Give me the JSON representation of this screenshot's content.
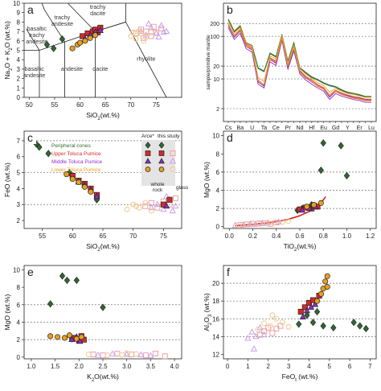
{
  "colors": {
    "peripheral": "#2e6b2e",
    "upper": "#d42a2a",
    "middle": "#8e2fc4",
    "lower": "#e8a020",
    "glass_upper": "#f0a0a0",
    "glass_middle": "#c8a0e8",
    "glass_lower": "#f2c890",
    "ref_line": "#777777",
    "fit_curve": "#d41e1e"
  },
  "legend": {
    "header_arce": "Arce*",
    "header_this": "this study",
    "entries": [
      "Peripheral cones",
      "Upper Toluca Pumice",
      "Middle Toluca Pumice",
      "Lower Toluca Pumice"
    ],
    "footer_whole": "whole rock",
    "footer_glass": "glass"
  },
  "chart_data": [
    {
      "panel": "a",
      "type": "scatter",
      "xlabel": "SiO2(wt.%)",
      "ylabel": "Na2O + K2O (wt.%)",
      "xlim": [
        49,
        80
      ],
      "ylim": [
        0,
        10
      ],
      "xticks": [
        50,
        55,
        60,
        65,
        70,
        75
      ],
      "yticks": [
        0,
        1,
        2,
        3,
        4,
        5,
        6,
        7,
        8,
        9,
        10
      ],
      "field_labels": [
        "trachy dacite",
        "trachy andesite",
        "basaltic trachy andesite",
        "basaltic andesite",
        "andesite",
        "dacite",
        "rhyolite"
      ],
      "series": [
        {
          "name": "Peripheral cones",
          "style": "wr",
          "x": [
            53.5,
            54.8,
            56.5
          ],
          "y": [
            5.6,
            5.2,
            6.2
          ]
        },
        {
          "name": "Upper Toluca Pumice",
          "style": "wr",
          "x": [
            60.5,
            61.5,
            62.5,
            63,
            63.5,
            64
          ],
          "y": [
            6.5,
            6.8,
            7.0,
            7.2,
            6.9,
            7.4
          ]
        },
        {
          "name": "Middle Toluca Pumice",
          "style": "wr",
          "x": [
            61,
            62,
            63,
            64
          ],
          "y": [
            6.2,
            6.6,
            6.9,
            7.1
          ]
        },
        {
          "name": "Lower Toluca Pumice",
          "style": "wr",
          "x": [
            58.5,
            59.5,
            60,
            61,
            62,
            63
          ],
          "y": [
            5.2,
            5.6,
            5.8,
            6.0,
            6.3,
            6.6
          ]
        },
        {
          "name": "Upper Toluca Pumice",
          "style": "glass",
          "x": [
            71,
            72,
            73,
            74,
            75,
            76,
            72.5,
            74.5
          ],
          "y": [
            6.8,
            7.2,
            7.0,
            6.5,
            6.9,
            7.3,
            6.3,
            7.5
          ]
        },
        {
          "name": "Middle Toluca Pumice",
          "style": "glass",
          "x": [
            72,
            73,
            74,
            75,
            76,
            77,
            73.5,
            75.5,
            76.5
          ],
          "y": [
            7.0,
            6.6,
            7.4,
            6.8,
            7.6,
            7.0,
            7.8,
            6.4,
            6.9
          ]
        },
        {
          "name": "Lower Toluca Pumice",
          "style": "glass",
          "x": [
            70,
            71,
            72,
            73,
            74,
            70.5,
            71.5,
            72.5
          ],
          "y": [
            6.5,
            6.2,
            6.8,
            6.4,
            6.9,
            6.9,
            7.0,
            6.0
          ]
        }
      ]
    },
    {
      "panel": "b",
      "type": "line",
      "ylabel": "sample/primitive mantle",
      "yscale": "log",
      "ylim": [
        1,
        600
      ],
      "yticks": [
        2,
        10,
        20,
        100,
        200
      ],
      "categories": [
        "Cs",
        "Rb",
        "Ba",
        "Th",
        "U",
        "Nb",
        "Ta",
        "La",
        "Ce",
        "Pb",
        "Pr",
        "Sr",
        "Nd",
        "Zr",
        "Hf",
        "Sm",
        "Eu",
        "Ti",
        "Gd",
        "Dy",
        "Y",
        "Ho",
        "Er",
        "Yb",
        "Lu"
      ],
      "series": [
        {
          "name": "Peripheral cones",
          "values": [
            250,
            130,
            175,
            70,
            60,
            18,
            15,
            40,
            33,
            110,
            26,
            70,
            18,
            14,
            11,
            9.5,
            8,
            7,
            6.5,
            5.5,
            4.8,
            4.5,
            4.2,
            3.8,
            3.8
          ]
        },
        {
          "name": "Upper Toluca Pumice",
          "values": [
            190,
            100,
            140,
            62,
            52,
            9,
            7,
            30,
            25,
            95,
            20,
            52,
            15,
            11,
            9,
            7,
            6,
            4,
            5.2,
            4.5,
            4,
            3.7,
            3.5,
            3.2,
            3.2
          ]
        },
        {
          "name": "Middle Toluca Pumice",
          "values": [
            170,
            90,
            125,
            55,
            45,
            8,
            6.5,
            27,
            22,
            85,
            18,
            48,
            14,
            10,
            8,
            6.5,
            5.5,
            3.5,
            4.8,
            4.2,
            3.8,
            3.5,
            3.3,
            3.0,
            3.0
          ]
        },
        {
          "name": "Lower Toluca Pumice",
          "values": [
            210,
            110,
            150,
            65,
            55,
            10,
            8,
            32,
            27,
            100,
            22,
            58,
            16,
            12,
            9.5,
            7.5,
            6.5,
            4.5,
            5.5,
            4.8,
            4.2,
            4.0,
            3.7,
            3.4,
            3.4
          ]
        }
      ]
    },
    {
      "panel": "c",
      "type": "scatter",
      "xlabel": "SiO2(wt.%)",
      "ylabel": "FeO (wt.%)",
      "xlim": [
        52,
        78
      ],
      "ylim": [
        1.5,
        7.6
      ],
      "xticks": [
        55,
        60,
        65,
        70,
        75
      ],
      "yticks": [
        2,
        3,
        4,
        5,
        6,
        7
      ],
      "ref_lines": [
        3,
        5,
        7
      ],
      "series": [
        {
          "name": "Peripheral cones",
          "style": "wr",
          "x": [
            54,
            54.5,
            56,
            59.5,
            62,
            64
          ],
          "y": [
            6.8,
            6.6,
            6.2,
            5.0,
            4.2,
            3.3
          ]
        },
        {
          "name": "Upper Toluca Pumice",
          "style": "wr",
          "x": [
            60,
            61,
            62,
            63,
            64,
            75,
            76
          ],
          "y": [
            4.8,
            4.5,
            4.3,
            4.0,
            3.6,
            3.0,
            3.3
          ]
        },
        {
          "name": "Middle Toluca Pumice",
          "style": "wr",
          "x": [
            61,
            62,
            63,
            64,
            75.5
          ],
          "y": [
            4.4,
            4.2,
            3.9,
            3.5,
            2.9
          ]
        },
        {
          "name": "Lower Toluca Pumice",
          "style": "wr",
          "x": [
            59,
            60,
            61,
            62,
            63
          ],
          "y": [
            4.9,
            4.6,
            4.4,
            4.1,
            3.8
          ]
        },
        {
          "name": "Upper Toluca Pumice",
          "style": "glass",
          "x": [
            72,
            73,
            74,
            75,
            76,
            77
          ],
          "y": [
            2.9,
            3.1,
            2.8,
            3.2,
            3.0,
            3.4
          ]
        },
        {
          "name": "Middle Toluca Pumice",
          "style": "glass",
          "x": [
            73,
            74,
            75,
            76,
            77,
            75.5,
            76.5
          ],
          "y": [
            2.8,
            3.0,
            2.7,
            3.3,
            2.9,
            3.5,
            2.6
          ]
        },
        {
          "name": "Lower Toluca Pumice",
          "style": "glass",
          "x": [
            69,
            70,
            71,
            72,
            73,
            70.5
          ],
          "y": [
            2.7,
            3.0,
            2.8,
            3.1,
            2.6,
            2.9
          ]
        }
      ]
    },
    {
      "panel": "d",
      "type": "scatter",
      "xlabel": "TiO2(wt.%)",
      "ylabel": "MgO (wt.%)",
      "xlim": [
        -0.05,
        1.25
      ],
      "ylim": [
        -0.2,
        10.5
      ],
      "xticks": [
        0.0,
        0.2,
        0.4,
        0.6,
        0.8,
        1.0,
        1.2
      ],
      "yticks": [
        0,
        2,
        4,
        6,
        8,
        10
      ],
      "ref_lines": [
        2,
        4,
        6
      ],
      "fit_curve": {
        "x": [
          0.05,
          0.2,
          0.35,
          0.5,
          0.6,
          0.7,
          0.78,
          0.82
        ],
        "y": [
          0.1,
          0.25,
          0.45,
          0.8,
          1.2,
          1.8,
          2.6,
          3.3
        ]
      },
      "series": [
        {
          "name": "Peripheral cones",
          "style": "wr",
          "x": [
            0.58,
            0.62,
            0.7,
            0.78,
            0.8,
            0.95,
            1.0
          ],
          "y": [
            1.8,
            2.0,
            2.4,
            6.2,
            9.2,
            8.9,
            5.6
          ]
        },
        {
          "name": "Upper Toluca Pumice",
          "style": "wr",
          "x": [
            0.6,
            0.65,
            0.7,
            0.72,
            0.75
          ],
          "y": [
            1.9,
            2.1,
            2.0,
            2.3,
            2.2
          ]
        },
        {
          "name": "Middle Toluca Pumice",
          "style": "wr",
          "x": [
            0.62,
            0.68,
            0.73
          ],
          "y": [
            1.8,
            2.0,
            2.2
          ]
        },
        {
          "name": "Lower Toluca Pumice",
          "style": "wr",
          "x": [
            0.66,
            0.72,
            0.78
          ],
          "y": [
            2.2,
            2.4,
            2.6
          ]
        },
        {
          "name": "Upper Toluca Pumice",
          "style": "glass",
          "x": [
            0.1,
            0.15,
            0.2,
            0.25,
            0.3,
            0.35,
            0.4
          ],
          "y": [
            0.2,
            0.25,
            0.3,
            0.35,
            0.4,
            0.3,
            0.45
          ]
        },
        {
          "name": "Middle Toluca Pumice",
          "style": "glass",
          "x": [
            0.05,
            0.12,
            0.18,
            0.22,
            0.28,
            0.33,
            0.42
          ],
          "y": [
            0.15,
            0.2,
            0.3,
            0.25,
            0.35,
            0.4,
            0.5
          ]
        },
        {
          "name": "Lower Toluca Pumice",
          "style": "glass",
          "x": [
            0.08,
            0.14,
            0.2,
            0.26,
            0.32,
            0.38,
            0.45,
            0.5
          ],
          "y": [
            0.2,
            0.3,
            0.35,
            0.3,
            0.4,
            0.45,
            0.5,
            0.6
          ]
        }
      ]
    },
    {
      "panel": "e",
      "type": "scatter",
      "xlabel": "K2O(wt.%)",
      "ylabel": "MgO (wt.%)",
      "xlim": [
        0.85,
        4.15
      ],
      "ylim": [
        -0.2,
        10.5
      ],
      "xticks": [
        1.0,
        1.5,
        2.0,
        2.5,
        3.0,
        3.5,
        4.0
      ],
      "yticks": [
        0,
        2,
        4,
        6,
        8,
        10
      ],
      "ref_lines": [
        2,
        4,
        6
      ],
      "series": [
        {
          "name": "Peripheral cones",
          "style": "wr",
          "x": [
            1.4,
            1.65,
            1.75,
            1.95,
            2.5,
            1.85
          ],
          "y": [
            6.1,
            9.3,
            8.8,
            8.8,
            5.7,
            2.1
          ]
        },
        {
          "name": "Upper Toluca Pumice",
          "style": "wr",
          "x": [
            1.9,
            2.0,
            2.05,
            2.1
          ],
          "y": [
            2.2,
            1.9,
            2.4,
            2.0
          ]
        },
        {
          "name": "Middle Toluca Pumice",
          "style": "wr",
          "x": [
            1.85,
            1.95,
            2.02
          ],
          "y": [
            2.0,
            2.3,
            1.8
          ]
        },
        {
          "name": "Lower Toluca Pumice",
          "style": "wr",
          "x": [
            1.4,
            1.55,
            1.7,
            1.8,
            1.95,
            2.05
          ],
          "y": [
            2.4,
            2.3,
            2.2,
            2.5,
            2.1,
            2.3
          ]
        },
        {
          "name": "Upper Toluca Pumice",
          "style": "glass",
          "x": [
            2.3,
            2.5,
            2.8,
            3.1,
            3.4,
            3.8,
            3.6
          ],
          "y": [
            0.3,
            0.2,
            0.4,
            0.3,
            0.2,
            0.1,
            0.4
          ]
        },
        {
          "name": "Middle Toluca Pumice",
          "style": "glass",
          "x": [
            2.4,
            2.7,
            3.0,
            3.3,
            3.5
          ],
          "y": [
            0.2,
            0.35,
            0.3,
            0.25,
            0.15
          ]
        },
        {
          "name": "Lower Toluca Pumice",
          "style": "glass",
          "x": [
            2.2,
            2.6,
            2.9,
            3.2,
            3.0
          ],
          "y": [
            0.3,
            0.2,
            0.25,
            0.35,
            0.45
          ]
        }
      ]
    },
    {
      "panel": "f",
      "type": "scatter",
      "xlabel": "FeOt (wt.%)",
      "ylabel": "Al2O3 (wt.%)",
      "xlim": [
        -0.2,
        7.3
      ],
      "ylim": [
        11.5,
        22
      ],
      "xticks": [
        0,
        1,
        2,
        3,
        4,
        5,
        6,
        7
      ],
      "yticks": [
        12,
        14,
        16,
        18,
        20
      ],
      "ref_lines": [
        14,
        16,
        18,
        20
      ],
      "series": [
        {
          "name": "Peripheral cones",
          "style": "wr",
          "x": [
            3.5,
            3.9,
            4.2,
            4.4,
            4.7,
            5.2,
            6.2,
            6.5,
            6.8
          ],
          "y": [
            15.4,
            16.4,
            15.6,
            16.8,
            15.2,
            15.0,
            15.6,
            15.2,
            14.9
          ]
        },
        {
          "name": "Upper Toluca Pumice",
          "style": "wr",
          "x": [
            3.6,
            3.8,
            4.0,
            4.2,
            4.5
          ],
          "y": [
            16.8,
            17.3,
            17.8,
            18.1,
            18.6
          ]
        },
        {
          "name": "Middle Toluca Pumice",
          "style": "wr",
          "x": [
            3.7,
            3.9,
            4.1,
            4.3
          ],
          "y": [
            16.2,
            16.9,
            17.3,
            17.6
          ]
        },
        {
          "name": "Lower Toluca Pumice",
          "style": "wr",
          "x": [
            4.4,
            4.6,
            4.7,
            4.8,
            4.9,
            4.9
          ],
          "y": [
            18.0,
            18.8,
            19.4,
            20.2,
            20.8,
            19.6
          ]
        },
        {
          "name": "Upper Toluca Pumice",
          "style": "glass",
          "x": [
            1.6,
            1.8,
            2.0,
            2.2,
            2.4,
            2.6
          ],
          "y": [
            14.2,
            14.6,
            15.0,
            14.4,
            14.9,
            15.2
          ]
        },
        {
          "name": "Middle Toluca Pumice",
          "style": "glass",
          "x": [
            1.0,
            1.2,
            1.4,
            1.6,
            1.8,
            1.3
          ],
          "y": [
            13.8,
            14.5,
            14.0,
            15.0,
            14.2,
            12.6
          ]
        },
        {
          "name": "Lower Toluca Pumice",
          "style": "glass",
          "x": [
            1.5,
            1.8,
            2.1,
            2.4,
            2.7,
            3.0,
            2.2
          ],
          "y": [
            14.8,
            15.5,
            15.2,
            16.0,
            15.6,
            15.1,
            16.4
          ]
        }
      ]
    }
  ]
}
